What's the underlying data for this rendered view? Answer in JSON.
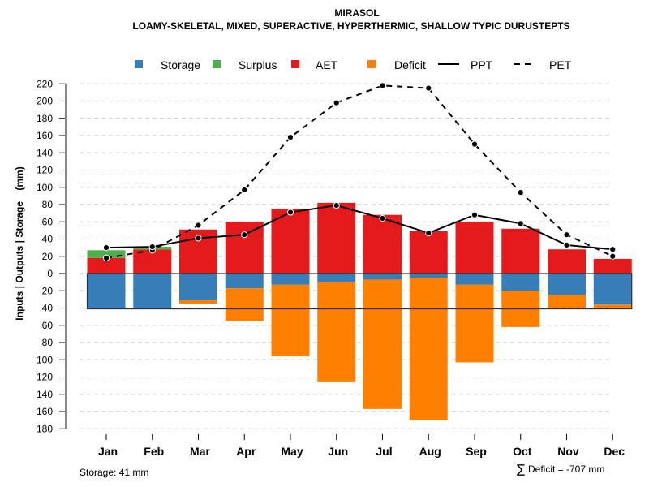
{
  "chart_data": {
    "type": "bar",
    "title": "MIRASOL",
    "subtitle": "LOAMY-SKELETAL, MIXED, SUPERACTIVE, HYPERTHERMIC, SHALLOW TYPIC DURUSTEPTS",
    "xlabel": "",
    "ylabel": "Inputs | Outputs | Storage    (mm)",
    "ylim": [
      -180,
      220
    ],
    "yticks": [
      220,
      200,
      180,
      160,
      140,
      120,
      100,
      80,
      60,
      40,
      20,
      0,
      -20,
      -40,
      -60,
      -80,
      -100,
      -120,
      -140,
      -160,
      -180
    ],
    "ytick_labels": [
      "220",
      "200",
      "180",
      "160",
      "140",
      "120",
      "100",
      "80",
      "60",
      "40",
      "20",
      "0",
      "20",
      "40",
      "60",
      "80",
      "100",
      "120",
      "140",
      "160",
      "180"
    ],
    "grid": true,
    "legend_position": "top",
    "categories": [
      "Jan",
      "Feb",
      "Mar",
      "Apr",
      "May",
      "Jun",
      "Jul",
      "Aug",
      "Sep",
      "Oct",
      "Nov",
      "Dec"
    ],
    "series": [
      {
        "name": "Storage",
        "kind": "bar-below",
        "color": "#377EB8",
        "values": [
          41,
          41,
          31,
          17,
          13,
          10,
          7,
          5,
          13,
          20,
          25,
          36
        ]
      },
      {
        "name": "Surplus",
        "kind": "bar-above-stacked",
        "color": "#4DAF4A",
        "values": [
          9,
          3,
          0,
          0,
          0,
          0,
          0,
          0,
          0,
          0,
          0,
          0
        ]
      },
      {
        "name": "AET",
        "kind": "bar-above",
        "color": "#E41A1C",
        "values": [
          18,
          28,
          51,
          60,
          75,
          82,
          68,
          49,
          60,
          52,
          28,
          17
        ]
      },
      {
        "name": "Deficit",
        "kind": "bar-below-stacked",
        "color": "#FF7F00",
        "values": [
          0,
          0,
          4,
          38,
          83,
          116,
          150,
          165,
          90,
          42,
          15,
          4
        ]
      },
      {
        "name": "PPT",
        "kind": "line-solid",
        "color": "#000000",
        "values": [
          30,
          31,
          41,
          45,
          71,
          79,
          64,
          47,
          68,
          58,
          33,
          28
        ]
      },
      {
        "name": "PET",
        "kind": "line-dashed",
        "color": "#000000",
        "values": [
          18,
          27,
          56,
          97,
          158,
          198,
          218,
          215,
          150,
          94,
          45,
          20
        ]
      }
    ],
    "storage_capacity": 41,
    "annotations": {
      "storage": "Storage: 41 mm",
      "deficit_symbol": "∑",
      "deficit": "Deficit = -707 mm"
    }
  }
}
